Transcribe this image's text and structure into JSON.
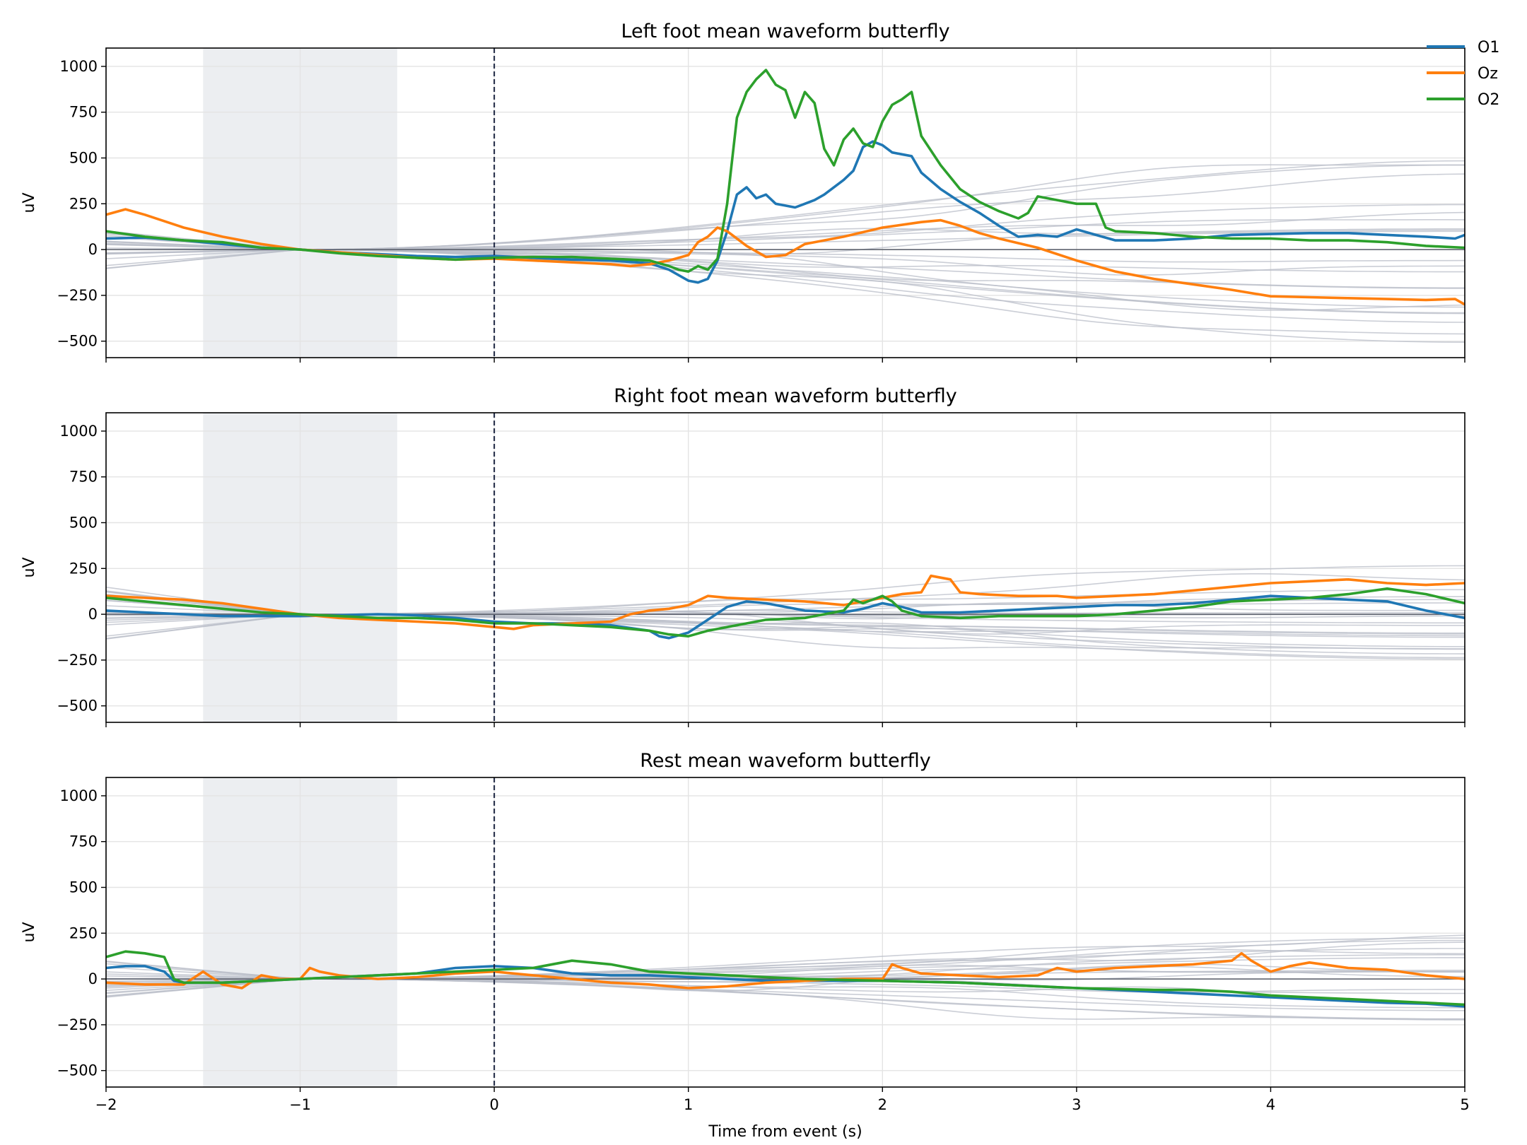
{
  "chart_data": {
    "type": "line",
    "xlabel": "Time from event (s)",
    "xlim": [
      -2,
      5
    ],
    "ylim": [
      -590,
      1100
    ],
    "x_ticks": [
      -2,
      -1,
      0,
      1,
      2,
      3,
      4,
      5
    ],
    "x_tick_labels": [
      "−2",
      "−1",
      "0",
      "1",
      "2",
      "3",
      "4",
      "5"
    ],
    "y_ticks": [
      -500,
      -250,
      0,
      250,
      500,
      750,
      1000
    ],
    "y_tick_labels": [
      "−500",
      "−250",
      "0",
      "250",
      "500",
      "750",
      "1000"
    ],
    "ylabel": "uV",
    "shaded_interval": [
      -1.5,
      -0.5
    ],
    "event_marker_x": 0,
    "grid": true,
    "legend_position": "top-right",
    "colors": {
      "O1": "#1f77b4",
      "Oz": "#ff7f0e",
      "O2": "#2ca02c",
      "background_channels": "#b9bdc8",
      "shade": "#eceef1",
      "event_line": "#1b2440"
    },
    "legend": [
      "O1",
      "Oz",
      "O2"
    ],
    "panels": [
      {
        "title": "Left foot mean waveform butterfly",
        "series": [
          {
            "name": "O1",
            "x": [
              -2,
              -1.8,
              -1.6,
              -1.4,
              -1.2,
              -1.0,
              -0.8,
              -0.6,
              -0.4,
              -0.2,
              0,
              0.2,
              0.4,
              0.6,
              0.8,
              0.9,
              1.0,
              1.05,
              1.1,
              1.15,
              1.2,
              1.25,
              1.3,
              1.35,
              1.4,
              1.45,
              1.5,
              1.55,
              1.6,
              1.65,
              1.7,
              1.8,
              1.85,
              1.9,
              1.95,
              2.0,
              2.05,
              2.1,
              2.15,
              2.2,
              2.3,
              2.4,
              2.5,
              2.6,
              2.7,
              2.8,
              2.9,
              3.0,
              3.1,
              3.2,
              3.4,
              3.6,
              3.8,
              4.0,
              4.2,
              4.4,
              4.6,
              4.8,
              4.95,
              5.0
            ],
            "y": [
              60,
              65,
              50,
              30,
              10,
              0,
              -15,
              -25,
              -35,
              -40,
              -35,
              -45,
              -55,
              -60,
              -75,
              -110,
              -170,
              -180,
              -160,
              -60,
              100,
              300,
              340,
              280,
              300,
              250,
              240,
              230,
              250,
              270,
              300,
              380,
              430,
              560,
              590,
              570,
              530,
              520,
              510,
              420,
              330,
              260,
              200,
              130,
              70,
              80,
              70,
              110,
              80,
              50,
              50,
              60,
              80,
              85,
              90,
              90,
              80,
              70,
              60,
              80
            ]
          },
          {
            "name": "Oz",
            "x": [
              -2,
              -1.9,
              -1.8,
              -1.6,
              -1.4,
              -1.2,
              -1.0,
              -0.8,
              -0.6,
              -0.4,
              -0.2,
              0,
              0.2,
              0.4,
              0.6,
              0.7,
              0.8,
              0.9,
              1.0,
              1.05,
              1.1,
              1.15,
              1.2,
              1.25,
              1.3,
              1.4,
              1.5,
              1.6,
              1.8,
              2.0,
              2.2,
              2.3,
              2.4,
              2.5,
              2.6,
              2.8,
              3.0,
              3.2,
              3.4,
              3.6,
              3.8,
              4.0,
              4.2,
              4.4,
              4.6,
              4.8,
              4.95,
              5.0
            ],
            "y": [
              190,
              220,
              190,
              120,
              70,
              30,
              0,
              -15,
              -30,
              -45,
              -55,
              -50,
              -60,
              -70,
              -80,
              -90,
              -80,
              -60,
              -30,
              40,
              70,
              120,
              100,
              60,
              20,
              -40,
              -30,
              30,
              70,
              120,
              150,
              160,
              130,
              90,
              60,
              10,
              -60,
              -120,
              -160,
              -190,
              -220,
              -255,
              -260,
              -265,
              -270,
              -275,
              -270,
              -300
            ]
          },
          {
            "name": "O2",
            "x": [
              -2,
              -1.8,
              -1.6,
              -1.4,
              -1.2,
              -1.0,
              -0.8,
              -0.6,
              -0.4,
              -0.2,
              0,
              0.2,
              0.4,
              0.6,
              0.8,
              0.9,
              0.95,
              1.0,
              1.05,
              1.1,
              1.15,
              1.2,
              1.25,
              1.3,
              1.35,
              1.4,
              1.45,
              1.5,
              1.55,
              1.6,
              1.65,
              1.7,
              1.75,
              1.8,
              1.85,
              1.9,
              1.95,
              2.0,
              2.05,
              2.1,
              2.15,
              2.2,
              2.3,
              2.4,
              2.5,
              2.6,
              2.7,
              2.75,
              2.8,
              2.9,
              3.0,
              3.1,
              3.15,
              3.2,
              3.4,
              3.6,
              3.8,
              4.0,
              4.2,
              4.4,
              4.6,
              4.8,
              5.0
            ],
            "y": [
              100,
              70,
              50,
              40,
              10,
              0,
              -20,
              -35,
              -45,
              -55,
              -45,
              -40,
              -40,
              -50,
              -60,
              -90,
              -110,
              -120,
              -90,
              -110,
              -50,
              250,
              720,
              860,
              930,
              980,
              900,
              870,
              720,
              860,
              800,
              550,
              460,
              600,
              660,
              580,
              560,
              700,
              790,
              820,
              860,
              620,
              460,
              330,
              260,
              210,
              170,
              200,
              290,
              270,
              250,
              250,
              120,
              100,
              90,
              70,
              60,
              60,
              50,
              50,
              40,
              20,
              10
            ]
          }
        ]
      },
      {
        "title": "Right foot mean waveform butterfly",
        "series": [
          {
            "name": "O1",
            "x": [
              -2,
              -1.8,
              -1.6,
              -1.4,
              -1.2,
              -1.0,
              -0.8,
              -0.6,
              -0.4,
              -0.2,
              0,
              0.2,
              0.4,
              0.6,
              0.8,
              0.85,
              0.9,
              1.0,
              1.1,
              1.2,
              1.3,
              1.4,
              1.5,
              1.6,
              1.8,
              1.9,
              2.0,
              2.1,
              2.2,
              2.4,
              2.6,
              2.8,
              3.0,
              3.2,
              3.4,
              3.6,
              3.8,
              4.0,
              4.2,
              4.4,
              4.6,
              4.8,
              5.0
            ],
            "y": [
              20,
              10,
              0,
              -10,
              -10,
              -10,
              -5,
              0,
              -5,
              -20,
              -40,
              -50,
              -50,
              -60,
              -90,
              -120,
              -130,
              -100,
              -30,
              40,
              70,
              60,
              40,
              20,
              10,
              30,
              60,
              40,
              10,
              10,
              20,
              30,
              40,
              50,
              50,
              60,
              80,
              100,
              90,
              80,
              70,
              20,
              -20
            ]
          },
          {
            "name": "Oz",
            "x": [
              -2,
              -1.8,
              -1.6,
              -1.4,
              -1.2,
              -1.0,
              -0.8,
              -0.6,
              -0.4,
              -0.2,
              0,
              0.1,
              0.2,
              0.4,
              0.6,
              0.7,
              0.8,
              0.9,
              1.0,
              1.1,
              1.2,
              1.4,
              1.6,
              1.8,
              2.0,
              2.1,
              2.2,
              2.25,
              2.35,
              2.4,
              2.5,
              2.7,
              2.9,
              3.0,
              3.2,
              3.4,
              3.6,
              3.8,
              4.0,
              4.2,
              4.4,
              4.6,
              4.8,
              5.0
            ],
            "y": [
              100,
              90,
              80,
              60,
              30,
              0,
              -20,
              -30,
              -40,
              -50,
              -70,
              -80,
              -60,
              -50,
              -40,
              0,
              20,
              30,
              50,
              100,
              90,
              80,
              70,
              50,
              90,
              110,
              120,
              210,
              190,
              120,
              110,
              100,
              100,
              90,
              100,
              110,
              130,
              150,
              170,
              180,
              190,
              170,
              160,
              170
            ]
          },
          {
            "name": "O2",
            "x": [
              -2,
              -1.8,
              -1.6,
              -1.4,
              -1.2,
              -1.0,
              -0.8,
              -0.6,
              -0.4,
              -0.2,
              0,
              0.2,
              0.4,
              0.6,
              0.8,
              0.9,
              1.0,
              1.1,
              1.2,
              1.3,
              1.4,
              1.6,
              1.8,
              1.85,
              1.9,
              2.0,
              2.05,
              2.1,
              2.2,
              2.4,
              2.6,
              2.8,
              3.0,
              3.2,
              3.4,
              3.6,
              3.8,
              4.0,
              4.2,
              4.4,
              4.6,
              4.8,
              5.0
            ],
            "y": [
              90,
              70,
              50,
              30,
              10,
              0,
              -10,
              -20,
              -20,
              -30,
              -50,
              -50,
              -60,
              -70,
              -90,
              -110,
              -120,
              -90,
              -70,
              -50,
              -30,
              -20,
              20,
              80,
              60,
              100,
              70,
              20,
              -10,
              -20,
              -10,
              -10,
              -10,
              0,
              20,
              40,
              70,
              80,
              90,
              110,
              140,
              110,
              60
            ]
          }
        ]
      },
      {
        "title": "Rest mean waveform butterfly",
        "series": [
          {
            "name": "O1",
            "x": [
              -2,
              -1.9,
              -1.8,
              -1.7,
              -1.65,
              -1.6,
              -1.4,
              -1.2,
              -1.0,
              -0.8,
              -0.6,
              -0.4,
              -0.2,
              0,
              0.2,
              0.4,
              0.6,
              0.8,
              1.0,
              1.2,
              1.4,
              1.6,
              1.8,
              2.0,
              2.2,
              2.4,
              2.6,
              2.8,
              3.0,
              3.2,
              3.4,
              3.6,
              3.8,
              4.0,
              4.2,
              4.4,
              4.6,
              4.8,
              5.0
            ],
            "y": [
              60,
              70,
              70,
              40,
              -10,
              -20,
              -20,
              -10,
              0,
              10,
              20,
              30,
              60,
              70,
              60,
              30,
              20,
              20,
              10,
              0,
              -10,
              -10,
              -10,
              -10,
              -15,
              -20,
              -30,
              -40,
              -50,
              -60,
              -70,
              -80,
              -90,
              -100,
              -110,
              -120,
              -130,
              -135,
              -150
            ]
          },
          {
            "name": "Oz",
            "x": [
              -2,
              -1.8,
              -1.6,
              -1.5,
              -1.4,
              -1.3,
              -1.2,
              -1.1,
              -1.0,
              -0.95,
              -0.9,
              -0.8,
              -0.6,
              -0.4,
              -0.2,
              0,
              0.2,
              0.4,
              0.6,
              0.8,
              1.0,
              1.2,
              1.4,
              1.6,
              1.8,
              2.0,
              2.05,
              2.1,
              2.2,
              2.4,
              2.6,
              2.8,
              2.9,
              3.0,
              3.2,
              3.4,
              3.6,
              3.8,
              3.85,
              3.9,
              4.0,
              4.1,
              4.2,
              4.4,
              4.6,
              4.8,
              5.0
            ],
            "y": [
              -20,
              -30,
              -30,
              40,
              -30,
              -50,
              20,
              0,
              0,
              60,
              40,
              20,
              0,
              10,
              30,
              40,
              20,
              0,
              -20,
              -30,
              -50,
              -40,
              -20,
              -10,
              0,
              0,
              80,
              60,
              30,
              20,
              10,
              20,
              60,
              40,
              60,
              70,
              80,
              100,
              140,
              100,
              40,
              70,
              90,
              60,
              50,
              20,
              0
            ]
          },
          {
            "name": "O2",
            "x": [
              -2,
              -1.9,
              -1.8,
              -1.7,
              -1.65,
              -1.6,
              -1.4,
              -1.2,
              -1.0,
              -0.8,
              -0.6,
              -0.4,
              -0.2,
              0,
              0.2,
              0.4,
              0.6,
              0.8,
              1.0,
              1.2,
              1.4,
              1.6,
              1.8,
              2.0,
              2.2,
              2.4,
              2.6,
              2.8,
              3.0,
              3.2,
              3.4,
              3.6,
              3.8,
              4.0,
              4.2,
              4.4,
              4.6,
              4.8,
              5.0
            ],
            "y": [
              120,
              150,
              140,
              120,
              0,
              -20,
              -20,
              -10,
              0,
              10,
              20,
              30,
              40,
              50,
              60,
              100,
              80,
              40,
              30,
              20,
              10,
              0,
              -5,
              -10,
              -15,
              -20,
              -30,
              -40,
              -50,
              -55,
              -60,
              -60,
              -70,
              -90,
              -100,
              -110,
              -120,
              -130,
              -140
            ]
          }
        ]
      }
    ]
  }
}
